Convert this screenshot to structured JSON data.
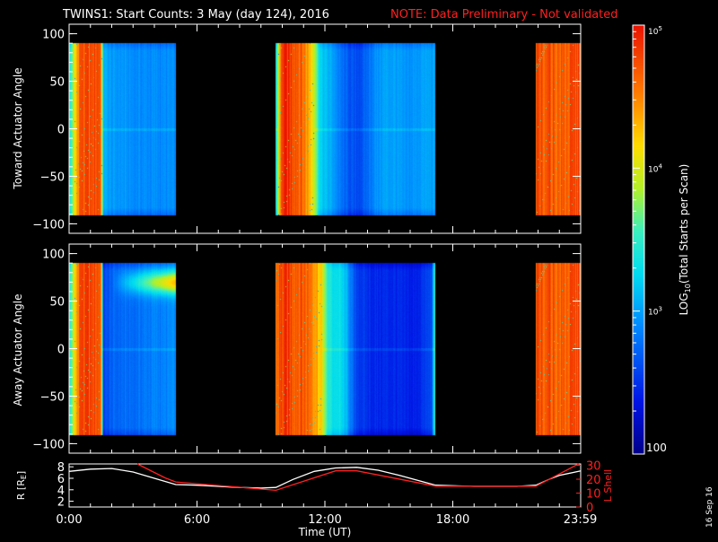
{
  "header": {
    "title": "TWINS1: Start Counts:  3 May (day 124), 2016",
    "note": "NOTE: Data Preliminary - Not validated"
  },
  "colors": {
    "background": "#000000",
    "foreground": "#ffffff",
    "note": "#ff2020",
    "lshell": "#ff2020",
    "radius": "#ffffff"
  },
  "footer": {
    "date_stamp": "16 Sep 16"
  },
  "chart_data": [
    {
      "type": "heatmap",
      "name": "toward-panel",
      "ylabel": "Toward Actuator Angle",
      "ylim": [
        -110,
        110
      ],
      "yticks": [
        100,
        50,
        0,
        -50,
        -100
      ],
      "angle_range": [
        -90,
        90
      ],
      "xlim": [
        0,
        24
      ],
      "coverage_hours": [
        [
          0,
          5.0
        ],
        [
          9.7,
          17.2
        ],
        [
          21.9,
          24
        ]
      ],
      "profile_hours": [
        0.0,
        0.5,
        1.0,
        1.4,
        1.5,
        1.6,
        1.7,
        2.0,
        2.5,
        3.0,
        3.5,
        4.0,
        4.5,
        5.0,
        9.7,
        10.0,
        10.3,
        10.6,
        11.0,
        11.4,
        11.8,
        12.1,
        12.4,
        12.7,
        13.0,
        13.4,
        13.8,
        14.3,
        14.8,
        15.3,
        15.8,
        16.2,
        16.6,
        17.0,
        17.2,
        21.9,
        22.5,
        23.0,
        23.5,
        24.0
      ],
      "log_counts": [
        3.25,
        4.75,
        4.7,
        4.8,
        4.6,
        3.15,
        3.05,
        2.95,
        2.95,
        2.9,
        2.9,
        2.9,
        2.9,
        2.9,
        3.3,
        4.9,
        4.85,
        4.8,
        4.6,
        4.2,
        3.2,
        3.1,
        3.0,
        2.8,
        2.7,
        2.6,
        2.65,
        2.9,
        3.0,
        3.0,
        2.9,
        2.95,
        3.0,
        3.0,
        3.0,
        4.7,
        4.75,
        4.65,
        4.7,
        4.75
      ]
    },
    {
      "type": "heatmap",
      "name": "away-panel",
      "ylabel": "Away Actuator Angle",
      "ylim": [
        -110,
        110
      ],
      "yticks": [
        100,
        50,
        0,
        -50,
        -100
      ],
      "angle_range": [
        -90,
        90
      ],
      "xlim": [
        0,
        24
      ],
      "coverage_hours": [
        [
          0,
          5.0
        ],
        [
          9.7,
          17.2
        ],
        [
          21.9,
          24
        ]
      ],
      "profile_hours": [
        0.0,
        0.5,
        1.0,
        1.4,
        1.5,
        1.6,
        1.7,
        2.0,
        2.5,
        3.0,
        3.5,
        4.0,
        4.5,
        5.0,
        9.7,
        10.0,
        10.3,
        10.6,
        11.0,
        11.4,
        11.8,
        12.1,
        12.4,
        12.7,
        13.0,
        13.4,
        13.8,
        14.3,
        14.8,
        15.3,
        15.8,
        16.2,
        16.6,
        17.0,
        17.2,
        21.9,
        22.5,
        23.0,
        23.5,
        24.0
      ],
      "log_counts": [
        3.3,
        4.8,
        4.75,
        4.75,
        4.6,
        2.55,
        2.6,
        2.7,
        2.75,
        2.75,
        2.8,
        2.85,
        2.85,
        2.9,
        4.6,
        4.8,
        4.8,
        4.75,
        4.7,
        4.6,
        4.2,
        3.5,
        3.3,
        3.3,
        3.1,
        2.6,
        2.5,
        2.45,
        2.45,
        2.45,
        2.4,
        2.4,
        2.5,
        2.6,
        3.7,
        4.7,
        4.75,
        4.65,
        4.7,
        4.75
      ],
      "enhancement": {
        "start_hour": 2.0,
        "end_hour": 5.0,
        "angle": 70,
        "peak_log": 4.3
      }
    },
    {
      "type": "line",
      "name": "orbit-panel",
      "xlabel": "Time (UT)",
      "xlim": [
        0,
        24
      ],
      "xticks": [
        "0:00",
        "6:00",
        "12:00",
        "18:00",
        "23:59"
      ],
      "xtick_hours": [
        0,
        6,
        12,
        18,
        23.98
      ],
      "ylabel_left": "R [R",
      "ylabel_left_sub": "E",
      "ylabel_left_end": "]",
      "ylim_left": [
        1,
        8.5
      ],
      "yticks_left": [
        8,
        6,
        4,
        2
      ],
      "ylabel_right": "L Shell",
      "ylim_right": [
        0,
        31
      ],
      "yticks_right": [
        30,
        20,
        10,
        0
      ],
      "series": [
        {
          "name": "R",
          "axis": "left",
          "hours": [
            0,
            1,
            2,
            3,
            4,
            5,
            6,
            7,
            8,
            9,
            9.7,
            10.5,
            11.5,
            12.5,
            13.5,
            14.5,
            15.5,
            16.5,
            17.2,
            18,
            19,
            20,
            21,
            21.9,
            22.5,
            23,
            24
          ],
          "values": [
            7.2,
            7.6,
            7.7,
            7.1,
            6.0,
            4.9,
            4.8,
            4.6,
            4.4,
            4.3,
            4.4,
            5.8,
            7.2,
            7.8,
            7.9,
            7.4,
            6.5,
            5.5,
            4.8,
            4.7,
            4.6,
            4.6,
            4.6,
            4.8,
            5.8,
            6.5,
            7.3
          ]
        },
        {
          "name": "L Shell",
          "axis": "right",
          "hours": [
            3.2,
            4.5,
            5.0,
            9.7,
            12.5,
            13.5,
            17.2,
            21.9,
            23.9
          ],
          "values": [
            31,
            21,
            18,
            12,
            26,
            26,
            15,
            15,
            31
          ]
        }
      ]
    },
    {
      "type": "heatmap",
      "name": "colorbar",
      "title": "LOG",
      "title_sub": "10",
      "title_end": "(Total Starts per Scan)",
      "range_log": [
        2,
        5
      ],
      "tick_base": "10",
      "major_ticks": [
        {
          "log": 5,
          "exp": "5"
        },
        {
          "log": 4,
          "exp": "4"
        },
        {
          "log": 3,
          "exp": "3"
        }
      ],
      "bottom_label": "100"
    }
  ]
}
